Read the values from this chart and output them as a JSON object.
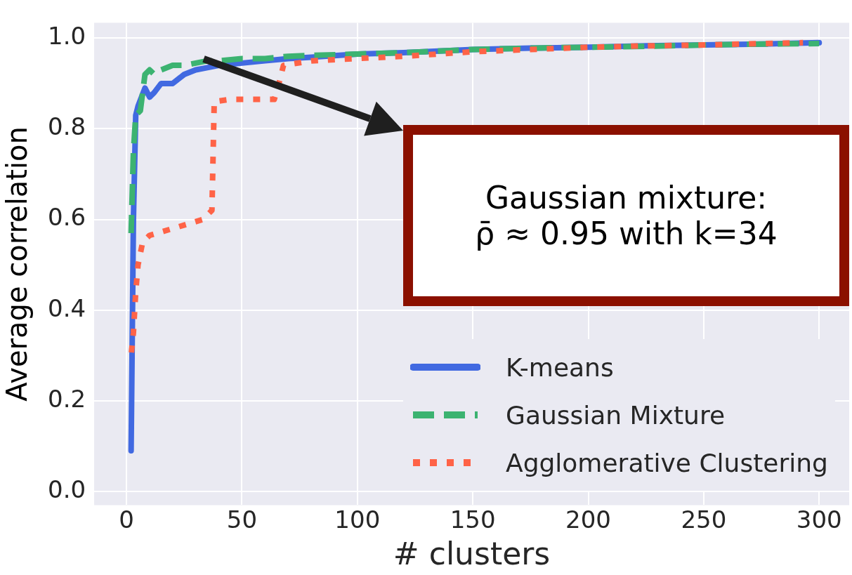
{
  "chart_data": {
    "type": "line",
    "xlabel": "# clusters",
    "ylabel": "Average correlation",
    "xlim": [
      -14,
      313
    ],
    "xticks": [
      0,
      50,
      100,
      150,
      200,
      250,
      300
    ],
    "ylim": [
      -0.03,
      1.034
    ],
    "yticks": [
      {
        "value": 0,
        "label": "0.0"
      },
      0.2,
      0.4,
      0.6,
      0.8,
      {
        "value": 1,
        "label": "1.0"
      }
    ],
    "grid": true,
    "legend": "bottom right",
    "marker": "none",
    "annotations": [
      "Gaussian mixture:\nρ̄ ≈ 0.95 with k=34"
    ],
    "series": [
      {
        "name": "K-means",
        "color": "#4169e1",
        "line_style": "solid",
        "x": [
          2,
          3,
          4,
          5,
          8,
          10,
          12,
          15,
          20,
          25,
          30,
          35,
          40,
          50,
          60,
          70,
          80,
          100,
          120,
          150,
          175,
          200,
          225,
          250,
          275,
          300
        ],
        "values": [
          0.09,
          0.6,
          0.83,
          0.85,
          0.89,
          0.87,
          0.88,
          0.9,
          0.9,
          0.92,
          0.93,
          0.935,
          0.94,
          0.945,
          0.95,
          0.955,
          0.958,
          0.965,
          0.968,
          0.975,
          0.978,
          0.98,
          0.983,
          0.985,
          0.987,
          0.99
        ]
      },
      {
        "name": "Gaussian Mixture",
        "color": "#3cb371",
        "line_style": "dashed",
        "x": [
          2,
          3,
          4,
          6,
          8,
          10,
          12,
          15,
          20,
          25,
          30,
          35,
          40,
          50,
          60,
          70,
          80,
          100,
          120,
          150,
          175,
          200,
          225,
          250,
          275,
          300
        ],
        "values": [
          0.57,
          0.75,
          0.83,
          0.84,
          0.92,
          0.93,
          0.92,
          0.93,
          0.94,
          0.94,
          0.945,
          0.95,
          0.95,
          0.955,
          0.955,
          0.96,
          0.962,
          0.965,
          0.968,
          0.975,
          0.978,
          0.98,
          0.982,
          0.985,
          0.987,
          0.988
        ]
      },
      {
        "name": "Agglomerative Clustering",
        "color": "#ff6347",
        "line_style": "dotted",
        "x": [
          2,
          3,
          4,
          5,
          7,
          10,
          20,
          33,
          37,
          38,
          45,
          64,
          66,
          68,
          80,
          100,
          120,
          150,
          175,
          200,
          225,
          250,
          275,
          293
        ],
        "values": [
          0.3,
          0.35,
          0.44,
          0.5,
          0.55,
          0.565,
          0.58,
          0.6,
          0.62,
          0.86,
          0.865,
          0.865,
          0.9,
          0.94,
          0.95,
          0.955,
          0.96,
          0.97,
          0.975,
          0.98,
          0.983,
          0.985,
          0.988,
          0.99
        ]
      }
    ]
  }
}
